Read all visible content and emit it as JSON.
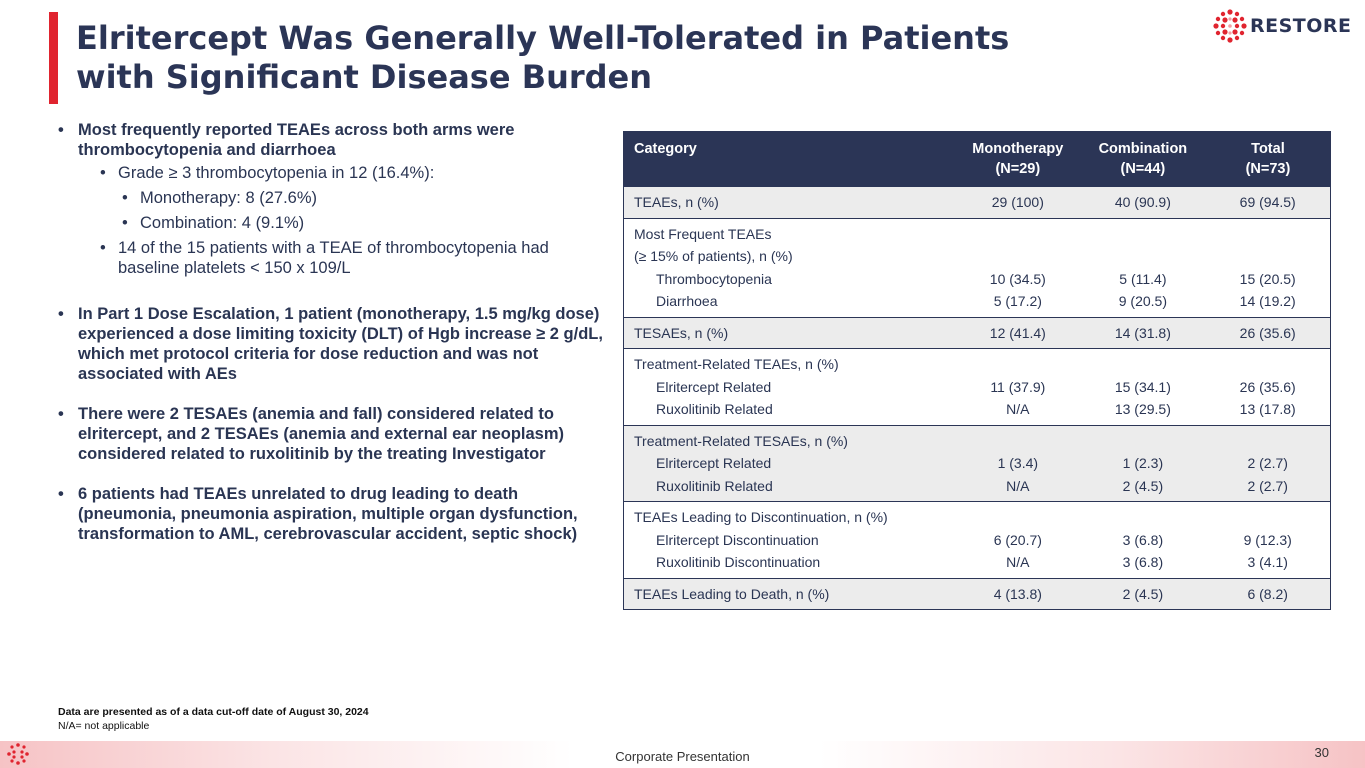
{
  "slide": {
    "title": "Elritercept Was Generally Well-Tolerated in Patients with Significant Disease Burden",
    "logo_text": "RESTORE",
    "accent_color": "#e0242f",
    "navy_color": "#2b3556"
  },
  "bullets": {
    "b1": "Most frequently reported TEAEs across both arms were thrombocytopenia and diarrhoea",
    "b1_sub1": "Grade ≥ 3 thrombocytopenia in 12 (16.4%):",
    "b1_sub1a": "Monotherapy: 8 (27.6%)",
    "b1_sub1b": "Combination: 4 (9.1%)",
    "b1_sub2": "14 of the 15 patients with a TEAE of thrombocytopenia had baseline platelets < 150 x 109/L",
    "b2": "In Part 1 Dose Escalation, 1 patient (monotherapy, 1.5 mg/kg dose) experienced a dose limiting toxicity (DLT) of Hgb increase ≥ 2 g/dL, which met protocol criteria for dose reduction and was not associated with AEs",
    "b3": "There were 2 TESAEs (anemia and fall) considered related to elritercept, and 2 TESAEs (anemia and external ear neoplasm) considered related to ruxolitinib by the treating Investigator",
    "b4": "6 patients had TEAEs unrelated to drug leading to death (pneumonia, pneumonia aspiration, multiple organ dysfunction, transformation to AML, cerebrovascular accident, septic shock)"
  },
  "footnote": {
    "line1": "Data are presented as of a data cut-off date of August 30, 2024",
    "line2": "N/A= not applicable"
  },
  "table": {
    "headers": {
      "category": "Category",
      "mono": "Monotherapy",
      "mono_n": "(N=29)",
      "combo": "Combination",
      "combo_n": "(N=44)",
      "total": "Total",
      "total_n": "(N=73)"
    },
    "teaes": {
      "label": "TEAEs, n (%)",
      "mono": "29 (100)",
      "combo": "40 (90.9)",
      "total": "69 (94.5)"
    },
    "frequent": {
      "label1": "Most Frequent TEAEs",
      "label2": "(≥ 15% of patients), n (%)",
      "thrombo": {
        "label": "Thrombocytopenia",
        "mono": "10 (34.5)",
        "combo": "5 (11.4)",
        "total": "15 (20.5)"
      },
      "diarr": {
        "label": "Diarrhoea",
        "mono": "5 (17.2)",
        "combo": "9 (20.5)",
        "total": "14 (19.2)"
      }
    },
    "tesaes": {
      "label": "TESAEs, n (%)",
      "mono": "12 (41.4)",
      "combo": "14 (31.8)",
      "total": "26 (35.6)"
    },
    "tr_teaes": {
      "label": "Treatment-Related TEAEs, n (%)",
      "elr": {
        "label": "Elritercept Related",
        "mono": "11 (37.9)",
        "combo": "15 (34.1)",
        "total": "26 (35.6)"
      },
      "rux": {
        "label": "Ruxolitinib Related",
        "mono": "N/A",
        "combo": "13 (29.5)",
        "total": "13 (17.8)"
      }
    },
    "tr_tesaes": {
      "label": "Treatment-Related TESAEs, n (%)",
      "elr": {
        "label": "Elritercept Related",
        "mono": "1 (3.4)",
        "combo": "1 (2.3)",
        "total": "2 (2.7)"
      },
      "rux": {
        "label": "Ruxolitinib Related",
        "mono": "N/A",
        "combo": "2 (4.5)",
        "total": "2 (2.7)"
      }
    },
    "disc": {
      "label": "TEAEs Leading to Discontinuation, n (%)",
      "elr": {
        "label": "Elritercept Discontinuation",
        "mono": "6 (20.7)",
        "combo": "3 (6.8)",
        "total": "9 (12.3)"
      },
      "rux": {
        "label": "Ruxolitinib Discontinuation",
        "mono": "N/A",
        "combo": "3 (6.8)",
        "total": "3 (4.1)"
      }
    },
    "death": {
      "label": "TEAEs Leading to Death, n (%)",
      "mono": "4 (13.8)",
      "combo": "2 (4.5)",
      "total": "6 (8.2)"
    }
  },
  "footer": {
    "text": "Corporate Presentation",
    "page": "30"
  }
}
